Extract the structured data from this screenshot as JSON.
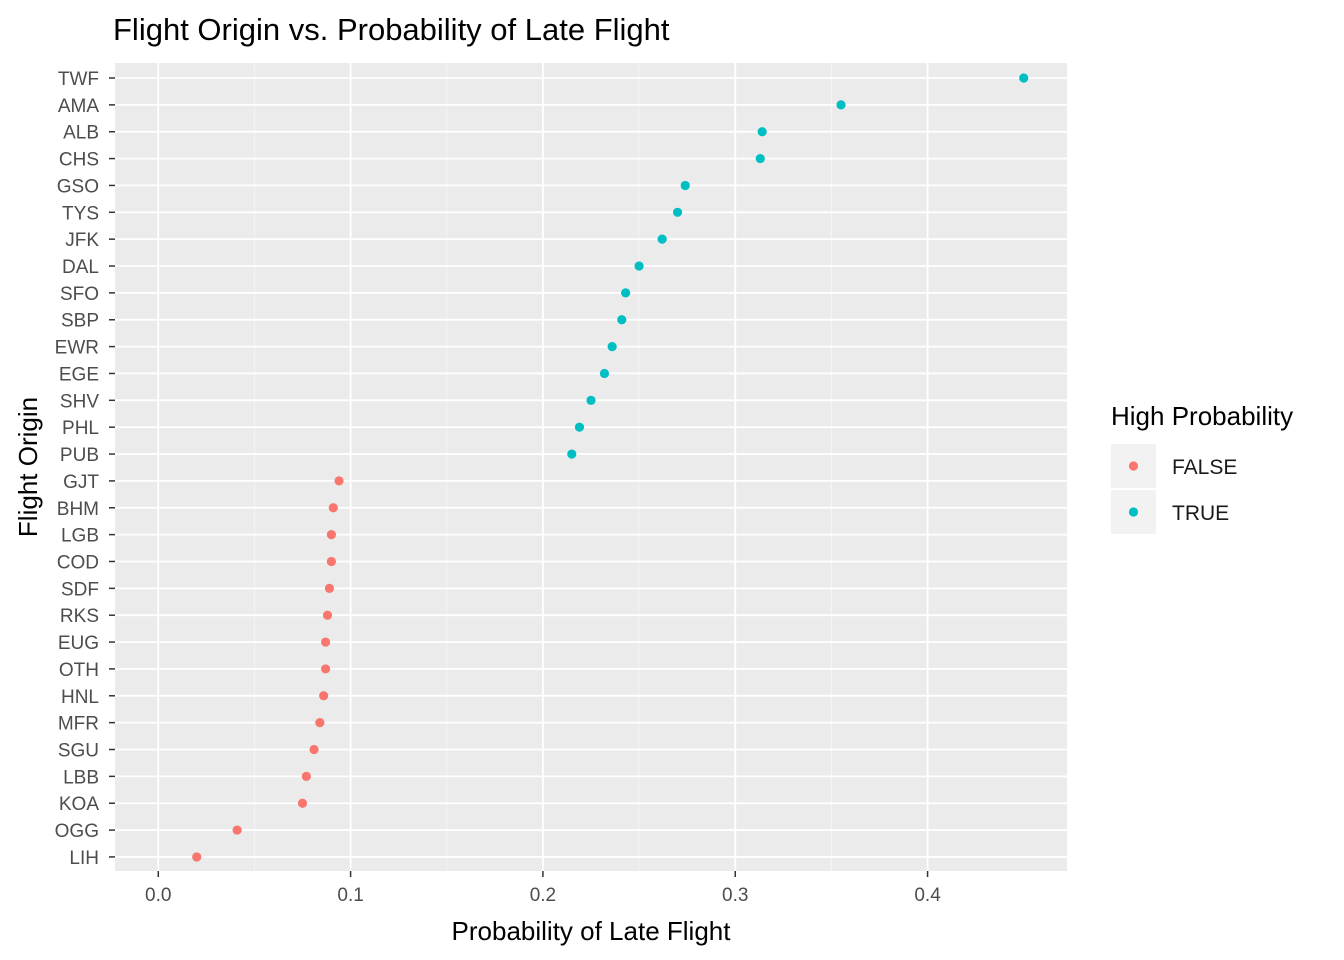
{
  "chart_data": {
    "type": "scatter",
    "title": "Flight Origin vs. Probability of Late Flight",
    "xlabel": "Probability of Late Flight",
    "ylabel": "Flight Origin",
    "xlim": [
      0,
      0.47
    ],
    "x_ticks": [
      0.0,
      0.1,
      0.2,
      0.3,
      0.4
    ],
    "x_tick_labels": [
      "0.0",
      "0.1",
      "0.2",
      "0.3",
      "0.4"
    ],
    "grid": true,
    "legend": {
      "title": "High Probability",
      "placement": "right",
      "entries": [
        {
          "label": "FALSE",
          "color": "#F8766D"
        },
        {
          "label": "TRUE",
          "color": "#00BFC4"
        }
      ]
    },
    "categories": [
      "TWF",
      "AMA",
      "ALB",
      "CHS",
      "GSO",
      "TYS",
      "JFK",
      "DAL",
      "SFO",
      "SBP",
      "EWR",
      "EGE",
      "SHV",
      "PHL",
      "PUB",
      "GJT",
      "BHM",
      "LGB",
      "COD",
      "SDF",
      "RKS",
      "EUG",
      "OTH",
      "HNL",
      "MFR",
      "SGU",
      "LBB",
      "KOA",
      "OGG",
      "LIH"
    ],
    "points": [
      {
        "origin": "TWF",
        "probability": 0.45,
        "high": "TRUE"
      },
      {
        "origin": "AMA",
        "probability": 0.355,
        "high": "TRUE"
      },
      {
        "origin": "ALB",
        "probability": 0.314,
        "high": "TRUE"
      },
      {
        "origin": "CHS",
        "probability": 0.313,
        "high": "TRUE"
      },
      {
        "origin": "GSO",
        "probability": 0.274,
        "high": "TRUE"
      },
      {
        "origin": "TYS",
        "probability": 0.27,
        "high": "TRUE"
      },
      {
        "origin": "JFK",
        "probability": 0.262,
        "high": "TRUE"
      },
      {
        "origin": "DAL",
        "probability": 0.25,
        "high": "TRUE"
      },
      {
        "origin": "SFO",
        "probability": 0.243,
        "high": "TRUE"
      },
      {
        "origin": "SBP",
        "probability": 0.241,
        "high": "TRUE"
      },
      {
        "origin": "EWR",
        "probability": 0.236,
        "high": "TRUE"
      },
      {
        "origin": "EGE",
        "probability": 0.232,
        "high": "TRUE"
      },
      {
        "origin": "SHV",
        "probability": 0.225,
        "high": "TRUE"
      },
      {
        "origin": "PHL",
        "probability": 0.219,
        "high": "TRUE"
      },
      {
        "origin": "PUB",
        "probability": 0.215,
        "high": "TRUE"
      },
      {
        "origin": "GJT",
        "probability": 0.094,
        "high": "FALSE"
      },
      {
        "origin": "BHM",
        "probability": 0.091,
        "high": "FALSE"
      },
      {
        "origin": "LGB",
        "probability": 0.09,
        "high": "FALSE"
      },
      {
        "origin": "COD",
        "probability": 0.09,
        "high": "FALSE"
      },
      {
        "origin": "SDF",
        "probability": 0.089,
        "high": "FALSE"
      },
      {
        "origin": "RKS",
        "probability": 0.088,
        "high": "FALSE"
      },
      {
        "origin": "EUG",
        "probability": 0.087,
        "high": "FALSE"
      },
      {
        "origin": "OTH",
        "probability": 0.087,
        "high": "FALSE"
      },
      {
        "origin": "HNL",
        "probability": 0.086,
        "high": "FALSE"
      },
      {
        "origin": "MFR",
        "probability": 0.084,
        "high": "FALSE"
      },
      {
        "origin": "SGU",
        "probability": 0.081,
        "high": "FALSE"
      },
      {
        "origin": "LBB",
        "probability": 0.077,
        "high": "FALSE"
      },
      {
        "origin": "KOA",
        "probability": 0.075,
        "high": "FALSE"
      },
      {
        "origin": "OGG",
        "probability": 0.041,
        "high": "FALSE"
      },
      {
        "origin": "LIH",
        "probability": 0.02,
        "high": "FALSE"
      }
    ],
    "colors": {
      "panel_background": "#EBEBEB",
      "grid_major": "#FFFFFF",
      "axis_tick": "#333333",
      "legend_key_background": "#F2F2F2"
    }
  }
}
